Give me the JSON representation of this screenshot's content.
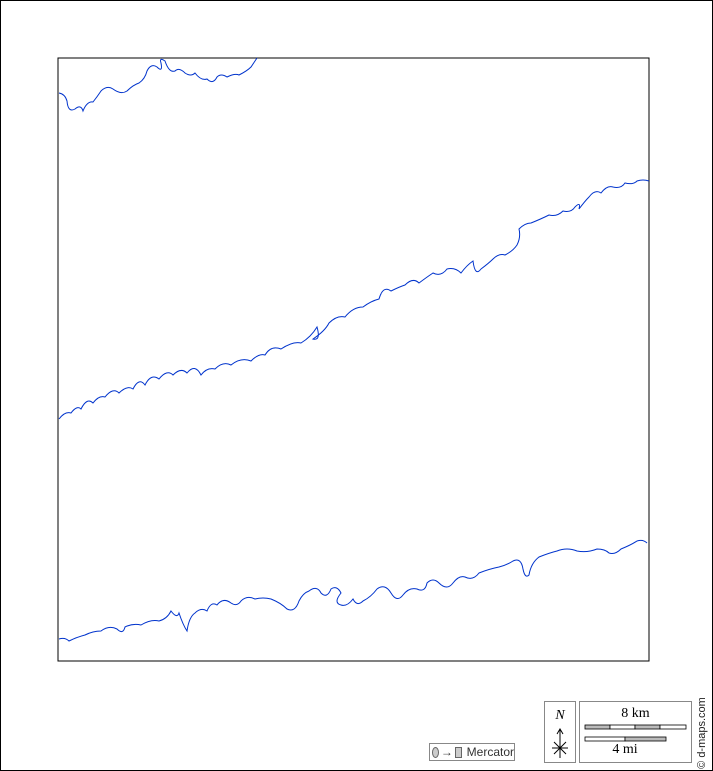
{
  "map": {
    "river_color": "#0033cc",
    "frame_color": "#000000"
  },
  "legend": {
    "projection_label": "Mercator",
    "north_label": "N",
    "scale_km_label": "8 km",
    "scale_mi_label": "4 mi",
    "copyright": "© d-maps.com"
  }
}
